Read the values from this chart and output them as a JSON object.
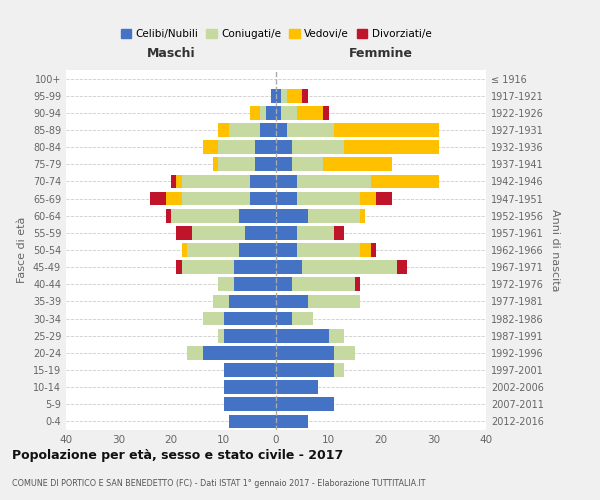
{
  "age_groups": [
    "0-4",
    "5-9",
    "10-14",
    "15-19",
    "20-24",
    "25-29",
    "30-34",
    "35-39",
    "40-44",
    "45-49",
    "50-54",
    "55-59",
    "60-64",
    "65-69",
    "70-74",
    "75-79",
    "80-84",
    "85-89",
    "90-94",
    "95-99",
    "100+"
  ],
  "birth_years": [
    "2012-2016",
    "2007-2011",
    "2002-2006",
    "1997-2001",
    "1992-1996",
    "1987-1991",
    "1982-1986",
    "1977-1981",
    "1972-1976",
    "1967-1971",
    "1962-1966",
    "1957-1961",
    "1952-1956",
    "1947-1951",
    "1942-1946",
    "1937-1941",
    "1932-1936",
    "1927-1931",
    "1922-1926",
    "1917-1921",
    "≤ 1916"
  ],
  "colors": {
    "celibi": "#4472c4",
    "coniugati": "#c5d9a0",
    "vedovi": "#ffc000",
    "divorziati": "#c0142a"
  },
  "maschi": {
    "celibi": [
      9,
      10,
      10,
      10,
      14,
      10,
      10,
      9,
      8,
      8,
      7,
      6,
      7,
      5,
      5,
      4,
      4,
      3,
      2,
      1,
      0
    ],
    "coniugati": [
      0,
      0,
      0,
      0,
      3,
      1,
      4,
      3,
      3,
      10,
      10,
      10,
      13,
      13,
      13,
      7,
      7,
      6,
      1,
      0,
      0
    ],
    "vedovi": [
      0,
      0,
      0,
      0,
      0,
      0,
      0,
      0,
      0,
      0,
      1,
      0,
      0,
      3,
      1,
      1,
      3,
      2,
      2,
      0,
      0
    ],
    "divorziati": [
      0,
      0,
      0,
      0,
      0,
      0,
      0,
      0,
      0,
      1,
      0,
      3,
      1,
      3,
      1,
      0,
      0,
      0,
      0,
      0,
      0
    ]
  },
  "femmine": {
    "celibi": [
      6,
      11,
      8,
      11,
      11,
      10,
      3,
      6,
      3,
      5,
      4,
      4,
      6,
      4,
      4,
      3,
      3,
      2,
      1,
      1,
      0
    ],
    "coniugati": [
      0,
      0,
      0,
      2,
      4,
      3,
      4,
      10,
      12,
      18,
      12,
      7,
      10,
      12,
      14,
      6,
      10,
      9,
      3,
      1,
      0
    ],
    "vedovi": [
      0,
      0,
      0,
      0,
      0,
      0,
      0,
      0,
      0,
      0,
      2,
      0,
      1,
      3,
      13,
      13,
      18,
      20,
      5,
      3,
      0
    ],
    "divorziati": [
      0,
      0,
      0,
      0,
      0,
      0,
      0,
      0,
      1,
      2,
      1,
      2,
      0,
      3,
      0,
      0,
      0,
      0,
      1,
      1,
      0
    ]
  },
  "xlim": 40,
  "title": "Popolazione per età, sesso e stato civile - 2017",
  "subtitle": "COMUNE DI PORTICO E SAN BENEDETTO (FC) - Dati ISTAT 1° gennaio 2017 - Elaborazione TUTTITALIA.IT",
  "ylabel_left": "Fasce di età",
  "ylabel_right": "Anni di nascita",
  "xlabel_left": "Maschi",
  "xlabel_right": "Femmine",
  "legend_labels": [
    "Celibi/Nubili",
    "Coniugati/e",
    "Vedovi/e",
    "Divorziati/e"
  ],
  "bg_color": "#f0f0f0",
  "plot_bg": "#ffffff"
}
